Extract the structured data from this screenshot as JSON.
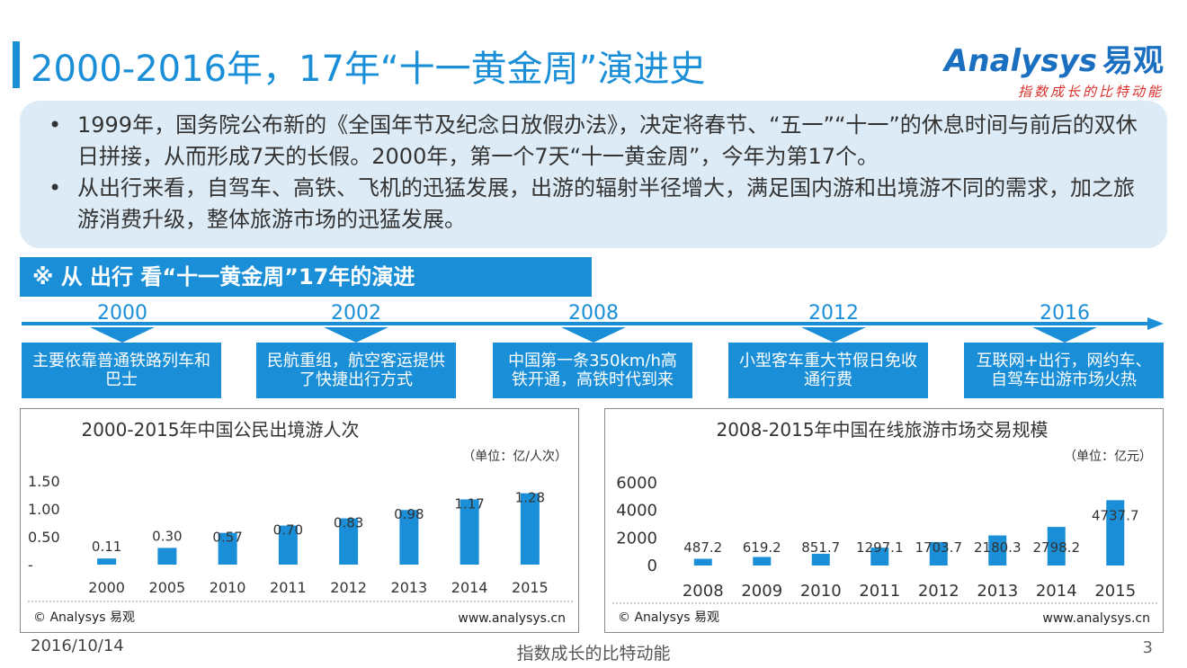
{
  "header": {
    "title": "2000-2016年，17年“十一黄金周”演进史"
  },
  "logo": {
    "brand_en": "Analysys",
    "brand_cn": "易观",
    "slogan": "指数成长的比特动能"
  },
  "summary": {
    "bullets": [
      "1999年，国务院公布新的《全国年节及纪念日放假办法》，决定将春节、“五一”“十一”的休息时间与前后的双休日拼接，从而形成7天的长假。2000年，第一个7天“十一黄金周”，今年为第17个。",
      "从出行来看，自驾车、高铁、飞机的迅猛发展，出游的辐射半径增大，满足国内游和出境游不同的需求，加之旅游消费升级，整体旅游市场的迅猛发展。"
    ]
  },
  "section": {
    "title": "※ 从 出行 看“十一黄金周”17年的演进"
  },
  "timeline": [
    {
      "year": "2000",
      "text": "主要依靠普通铁路列车和巴士"
    },
    {
      "year": "2002",
      "text": "民航重组，航空客运提供了快捷出行方式"
    },
    {
      "year": "2008",
      "text": "中国第一条350km/h高铁开通，高铁时代到来"
    },
    {
      "year": "2012",
      "text": "小型客车重大节假日免收通行费"
    },
    {
      "year": "2016",
      "text": "互联网+出行，网约车、自驾车出游市场火热"
    }
  ],
  "colors": {
    "accent": "#1a8fd8",
    "bar": "#1a8fd8",
    "summary_bg": "#dcebf5",
    "logo_red": "#d9302a"
  },
  "chart_data": [
    {
      "type": "bar",
      "title": "2000-2015年中国公民出境游人次",
      "unit_label": "（单位：亿/人次）",
      "categories": [
        "2000",
        "2005",
        "2010",
        "2011",
        "2012",
        "2013",
        "2014",
        "2015"
      ],
      "values": [
        0.11,
        0.3,
        0.57,
        0.7,
        0.83,
        0.98,
        1.17,
        1.28
      ],
      "value_labels": [
        "0.11",
        "0.30",
        "0.57",
        "0.70",
        "0.83",
        "0.98",
        "1.17",
        "1.28"
      ],
      "ylim": [
        0,
        1.5
      ],
      "yticks": [
        0,
        0.5,
        1.0,
        1.5
      ],
      "ytick_labels": [
        "-",
        "0.50",
        "1.00",
        "1.50"
      ],
      "copyright": "© Analysys 易观",
      "website": "www.analysys.cn"
    },
    {
      "type": "bar",
      "title": "2008-2015年中国在线旅游市场交易规模",
      "unit_label": "（单位：亿元）",
      "categories": [
        "2008",
        "2009",
        "2010",
        "2011",
        "2012",
        "2013",
        "2014",
        "2015"
      ],
      "values": [
        487.2,
        619.2,
        851.7,
        1297.1,
        1703.7,
        2180.3,
        2798.2,
        4737.7
      ],
      "value_labels": [
        "487.2",
        "619.2",
        "851.7",
        "1297.1",
        "1703.7",
        "2180.3",
        "2798.2",
        "4737.7"
      ],
      "ylim": [
        0,
        6000
      ],
      "yticks": [
        0,
        2000,
        4000,
        6000
      ],
      "ytick_labels": [
        "0",
        "2000",
        "4000",
        "6000"
      ],
      "copyright": "© Analysys 易观",
      "website": "www.analysys.cn"
    }
  ],
  "footer": {
    "date": "2016/10/14",
    "slogan": "指数成长的比特动能",
    "page": "3"
  }
}
